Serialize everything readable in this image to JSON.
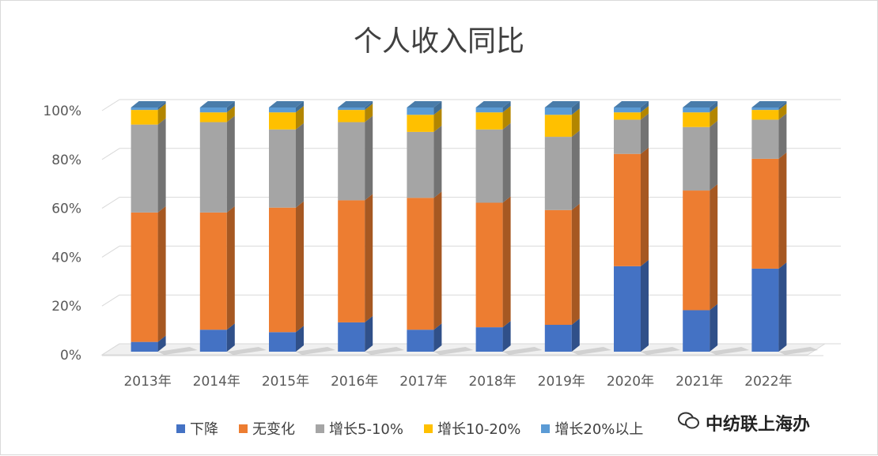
{
  "chart_data": {
    "type": "bar",
    "stacked": "percent",
    "style": "3d",
    "title": "个人收入同比",
    "categories": [
      "2013年",
      "2014年",
      "2015年",
      "2016年",
      "2017年",
      "2018年",
      "2019年",
      "2020年",
      "2021年",
      "2022年"
    ],
    "yticks": [
      "0%",
      "20%",
      "40%",
      "60%",
      "80%",
      "100%"
    ],
    "ylim": [
      0,
      100
    ],
    "grid": true,
    "legend_position": "bottom",
    "series": [
      {
        "name": "下降",
        "color": "#4472C4",
        "values": [
          4,
          9,
          8,
          12,
          9,
          10,
          11,
          35,
          17,
          34
        ]
      },
      {
        "name": "无变化",
        "color": "#ED7D31",
        "values": [
          53,
          48,
          51,
          50,
          54,
          51,
          47,
          46,
          49,
          45
        ]
      },
      {
        "name": "增长5-10%",
        "color": "#A5A5A5",
        "values": [
          36,
          37,
          32,
          32,
          27,
          30,
          30,
          14,
          26,
          16
        ]
      },
      {
        "name": "增长10-20%",
        "color": "#FFC000",
        "values": [
          6,
          4,
          7,
          5,
          7,
          7,
          9,
          3,
          6,
          4
        ]
      },
      {
        "name": "增长20%以上",
        "color": "#5B9BD5",
        "values": [
          1,
          2,
          2,
          1,
          3,
          2,
          3,
          2,
          2,
          1
        ]
      }
    ]
  },
  "watermark": {
    "text": "中纺联上海办",
    "icon": "wechat-icon"
  }
}
